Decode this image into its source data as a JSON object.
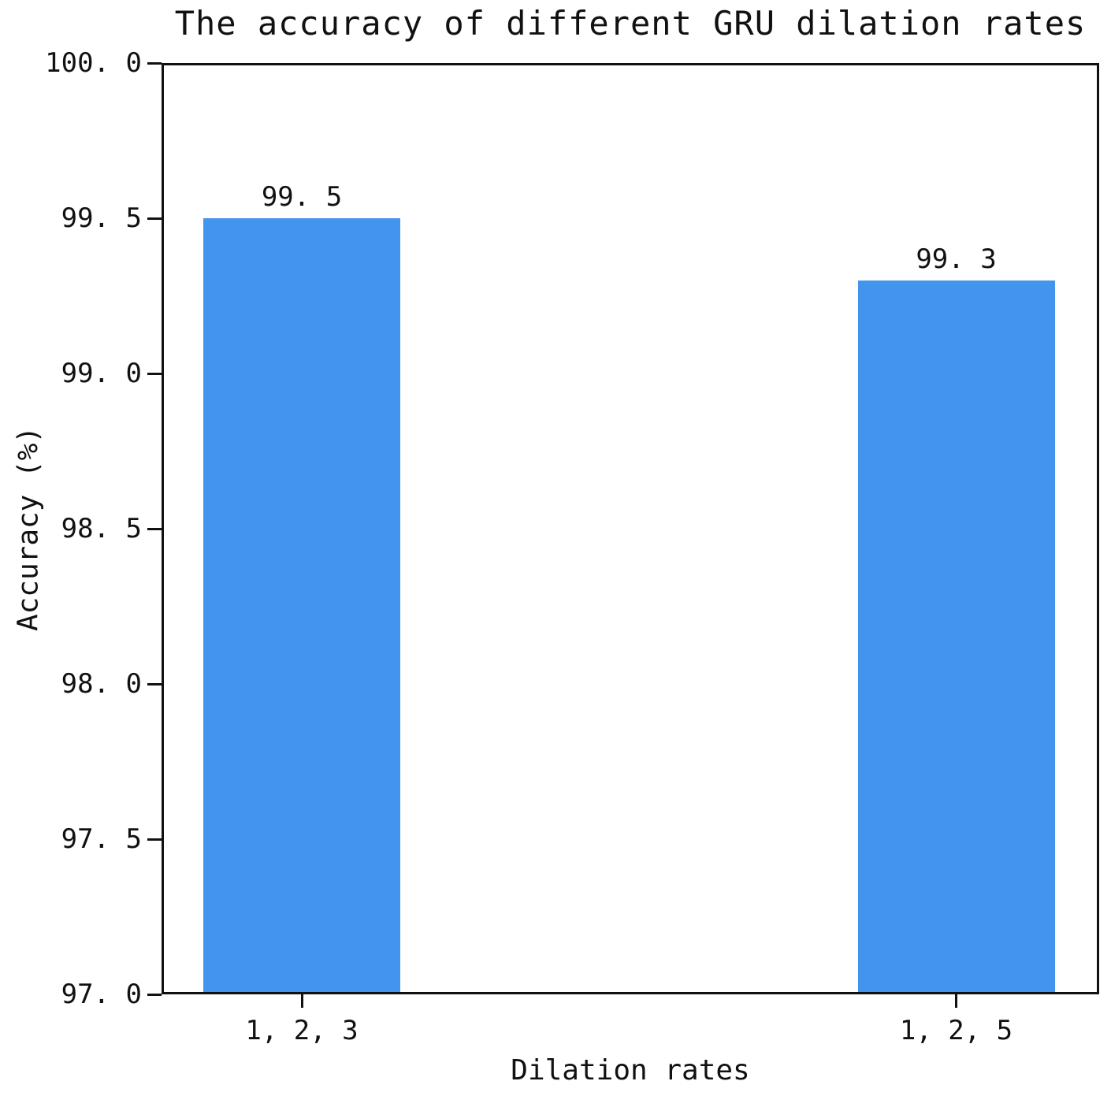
{
  "chart_data": {
    "type": "bar",
    "title": "The accuracy of different GRU dilation rates",
    "xlabel": "Dilation rates",
    "ylabel": "Accuracy (%)",
    "categories": [
      "1, 2, 3",
      "1, 2, 5"
    ],
    "values": [
      99.5,
      99.3
    ],
    "bar_value_labels": [
      "99. 5",
      "99. 3"
    ],
    "ylim": [
      97.0,
      100.0
    ],
    "yticks": [
      100.0,
      99.5,
      99.0,
      98.5,
      98.0,
      97.5,
      97.0
    ],
    "ytick_labels": [
      "100. 0",
      "99. 5",
      "99. 0",
      "98. 5",
      "98. 0",
      "97. 5",
      "97. 0"
    ],
    "grid": false,
    "legend": null,
    "bar_color": "#4294ec",
    "axis_color": "#111111",
    "layout": {
      "bar_centers_frac": [
        0.1496,
        0.8475
      ],
      "bar_width_frac": 0.2101
    }
  }
}
